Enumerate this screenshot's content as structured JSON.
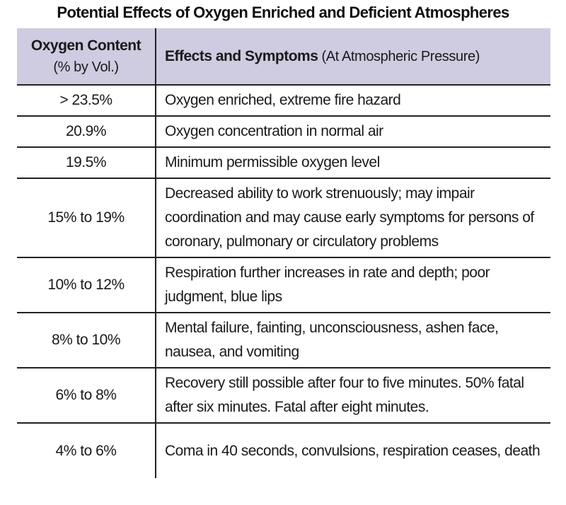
{
  "title": "Potential Effects of Oxygen Enriched and Deficient Atmospheres",
  "header": {
    "col1_line1": "Oxygen Content",
    "col1_line2": "(% by Vol.)",
    "col2_bold": "Effects and Symptoms",
    "col2_normal": " (At Atmospheric Pressure)"
  },
  "header_color": "#cfcbe1",
  "rows": [
    {
      "content": "> 23.5%",
      "effect": "Oxygen enriched, extreme fire hazard"
    },
    {
      "content": "20.9%",
      "effect": "Oxygen concentration in normal air"
    },
    {
      "content": "19.5%",
      "effect": "Minimum permissible oxygen level"
    },
    {
      "content": "15% to 19%",
      "effect": "Decreased ability to work strenuously; may impair coordination and may cause early symptoms for persons of coronary, pulmonary or circulatory problems"
    },
    {
      "content": "10% to 12%",
      "effect": "Respiration further increases in rate and depth; poor judgment, blue lips"
    },
    {
      "content": "8% to 10%",
      "effect": "Mental failure, fainting, unconsciousness, ashen face, nausea, and vomiting"
    },
    {
      "content": "6% to 8%",
      "effect": "Recovery still possible after four to five minutes. 50% fatal after six minutes. Fatal after eight minutes."
    },
    {
      "content": "4% to 6%",
      "effect": "Coma in 40 seconds, convulsions, respiration ceases, death"
    }
  ]
}
